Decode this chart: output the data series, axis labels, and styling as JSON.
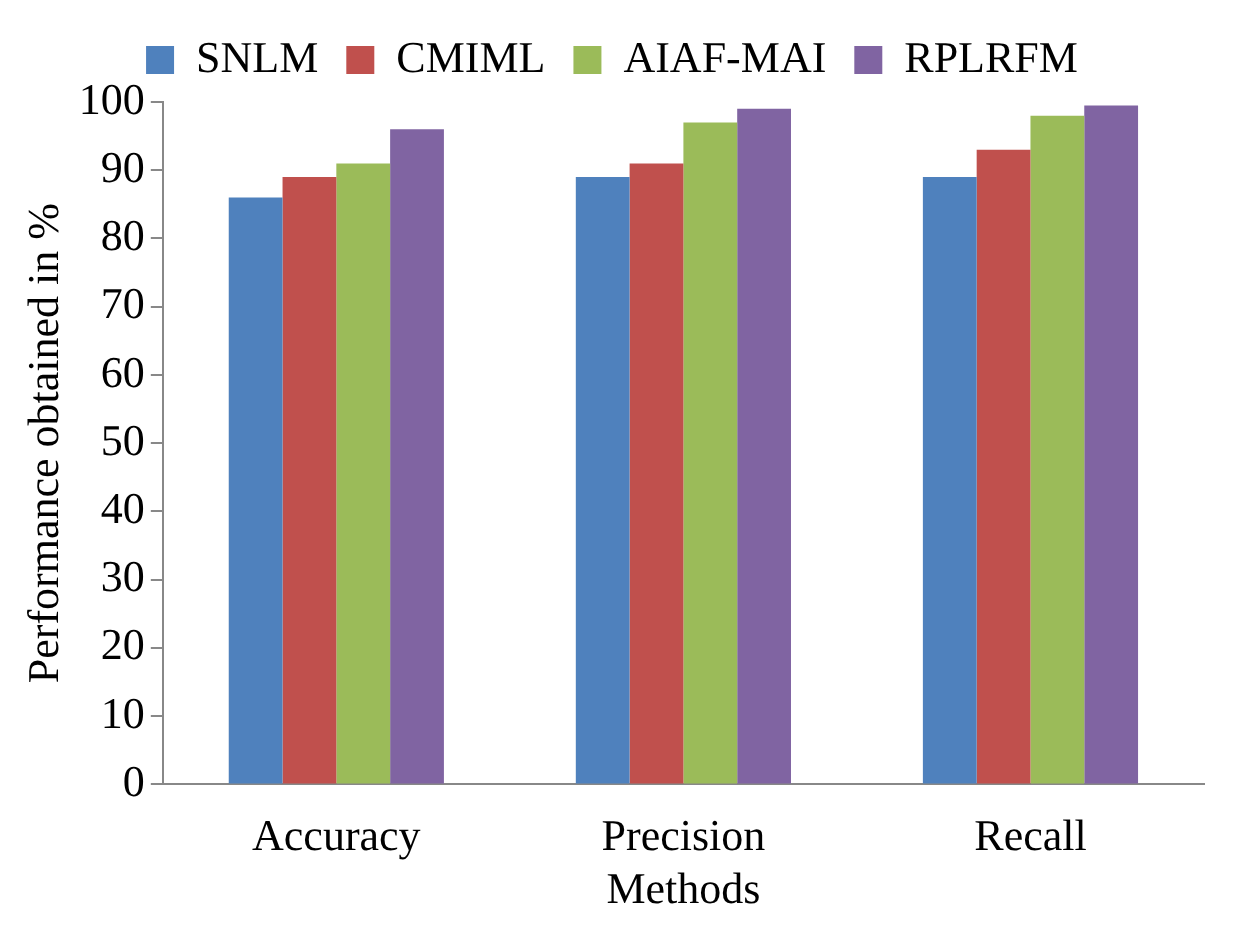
{
  "chart_data": {
    "type": "bar",
    "xlabel": "Methods",
    "ylabel": "Performance obtained in %",
    "categories": [
      "Accuracy",
      "Precision",
      "Recall"
    ],
    "series": [
      {
        "name": "SNLM",
        "color": "#4f81bd",
        "values": [
          86,
          89,
          89
        ]
      },
      {
        "name": "CMIML",
        "color": "#c0504d",
        "values": [
          89,
          91,
          93
        ]
      },
      {
        "name": "AIAF-MAI",
        "color": "#9bbb59",
        "values": [
          91,
          97,
          98
        ]
      },
      {
        "name": "RPLRFM",
        "color": "#8064a2",
        "values": [
          96,
          99,
          99.5
        ]
      }
    ],
    "ylim": [
      0,
      100
    ],
    "yticks": [
      0,
      10,
      20,
      30,
      40,
      50,
      60,
      70,
      80,
      90,
      100
    ],
    "grid": false,
    "legend": "top"
  }
}
